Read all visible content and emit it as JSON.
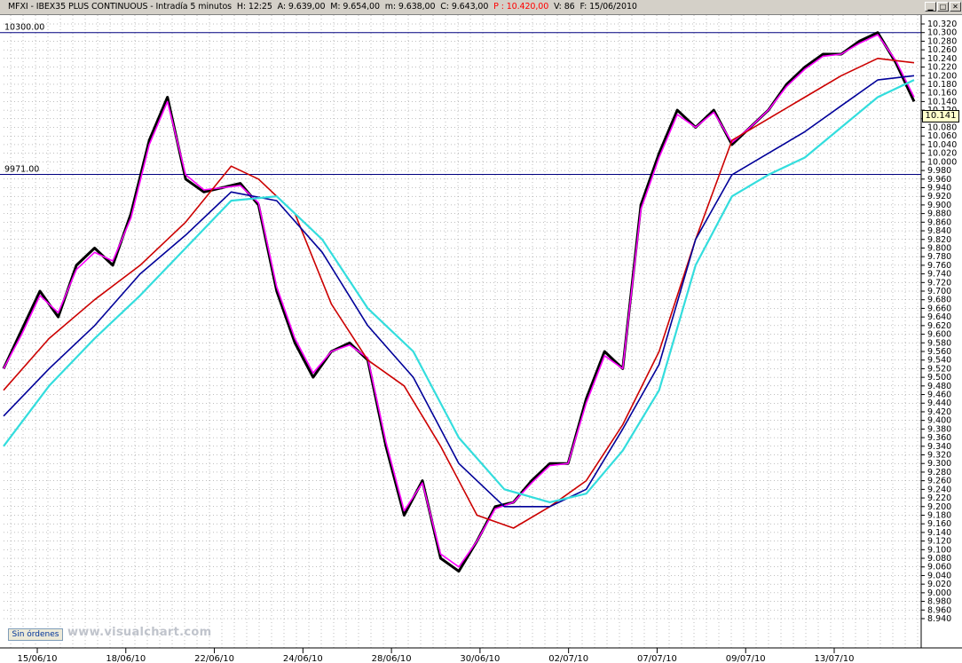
{
  "window": {
    "symbol": "MFXI - IBEX35 PLUS CONTINUOUS - Intradía 5 minutos",
    "h": "H: 12:25",
    "a": "A: 9.639,00",
    "m": "M: 9.654,00",
    "mn": "m: 9.638,00",
    "c": "C: 9.643,00",
    "p": "P : 10.420,00",
    "v": "V: 86",
    "f": "F: 15/06/2010"
  },
  "footer": {
    "orders_button": "Sin órdenes",
    "watermark": "www.visualchart.com"
  },
  "last_price_label": "10.141",
  "colors": {
    "price": "#000000",
    "ma_fast": "#ff00ff",
    "ma_mid": "#000099",
    "ma_red": "#cc0000",
    "ma_cyan": "#33dddd",
    "grid": "#7f7f7f",
    "hline": "#000080"
  },
  "chart_data": {
    "type": "line",
    "y_range": [
      8940,
      10320
    ],
    "y_tick_step": 20,
    "dates": [
      "15/06/10",
      "18/06/10",
      "22/06/10",
      "24/06/10",
      "28/06/10",
      "30/06/10",
      "02/07/10",
      "07/07/10",
      "09/07/10",
      "13/07/10"
    ],
    "hlines": [
      {
        "label": "10300.00",
        "value": 10300
      },
      {
        "label": "9971.00",
        "value": 9971
      }
    ],
    "series": [
      {
        "color_key": "price",
        "x": [
          0.0,
          0.02,
          0.04,
          0.06,
          0.08,
          0.1,
          0.12,
          0.14,
          0.16,
          0.18,
          0.2,
          0.22,
          0.24,
          0.26,
          0.28,
          0.3,
          0.32,
          0.34,
          0.36,
          0.38,
          0.4,
          0.42,
          0.44,
          0.46,
          0.48,
          0.5,
          0.52,
          0.54,
          0.56,
          0.58,
          0.6,
          0.62,
          0.64,
          0.66,
          0.68,
          0.7,
          0.72,
          0.74,
          0.76,
          0.78,
          0.8,
          0.82,
          0.84,
          0.86,
          0.88,
          0.9,
          0.92,
          0.94,
          0.96,
          0.98,
          1.0
        ],
        "values": [
          9520,
          9610,
          9700,
          9640,
          9760,
          9800,
          9760,
          9880,
          10050,
          10150,
          9960,
          9930,
          9940,
          9950,
          9900,
          9700,
          9580,
          9500,
          9560,
          9580,
          9540,
          9340,
          9180,
          9260,
          9080,
          9050,
          9120,
          9200,
          9210,
          9260,
          9300,
          9300,
          9450,
          9560,
          9520,
          9900,
          10020,
          10120,
          10080,
          10120,
          10040,
          10080,
          10120,
          10180,
          10220,
          10250,
          10250,
          10280,
          10300,
          10230,
          10140
        ]
      },
      {
        "color_key": "ma_fast",
        "x": [
          0.0,
          0.02,
          0.04,
          0.06,
          0.08,
          0.1,
          0.12,
          0.14,
          0.16,
          0.18,
          0.2,
          0.22,
          0.24,
          0.26,
          0.28,
          0.3,
          0.32,
          0.34,
          0.36,
          0.38,
          0.4,
          0.42,
          0.44,
          0.46,
          0.48,
          0.5,
          0.52,
          0.54,
          0.56,
          0.58,
          0.6,
          0.62,
          0.64,
          0.66,
          0.68,
          0.7,
          0.72,
          0.74,
          0.76,
          0.78,
          0.8,
          0.82,
          0.84,
          0.86,
          0.88,
          0.9,
          0.92,
          0.94,
          0.96,
          0.98,
          1.0
        ],
        "values": [
          9520,
          9600,
          9690,
          9650,
          9750,
          9790,
          9770,
          9870,
          10040,
          10140,
          9970,
          9935,
          9940,
          9945,
          9905,
          9710,
          9590,
          9510,
          9560,
          9575,
          9545,
          9350,
          9190,
          9255,
          9090,
          9060,
          9120,
          9195,
          9210,
          9255,
          9295,
          9300,
          9440,
          9550,
          9520,
          9890,
          10010,
          10110,
          10080,
          10115,
          10045,
          10080,
          10120,
          10175,
          10215,
          10245,
          10250,
          10275,
          10295,
          10235,
          10150
        ]
      },
      {
        "color_key": "ma_red",
        "x": [
          0.0,
          0.05,
          0.1,
          0.15,
          0.2,
          0.25,
          0.28,
          0.32,
          0.36,
          0.4,
          0.44,
          0.48,
          0.52,
          0.56,
          0.6,
          0.64,
          0.68,
          0.72,
          0.76,
          0.8,
          0.84,
          0.88,
          0.92,
          0.96,
          1.0
        ],
        "values": [
          9470,
          9590,
          9680,
          9760,
          9860,
          9990,
          9960,
          9880,
          9670,
          9540,
          9480,
          9340,
          9180,
          9150,
          9200,
          9260,
          9390,
          9560,
          9820,
          10050,
          10100,
          10150,
          10200,
          10240,
          10230
        ]
      },
      {
        "color_key": "ma_mid",
        "x": [
          0.0,
          0.05,
          0.1,
          0.15,
          0.2,
          0.25,
          0.3,
          0.35,
          0.4,
          0.45,
          0.5,
          0.55,
          0.6,
          0.64,
          0.68,
          0.72,
          0.76,
          0.8,
          0.84,
          0.88,
          0.92,
          0.96,
          1.0
        ],
        "values": [
          9410,
          9520,
          9620,
          9740,
          9830,
          9930,
          9910,
          9790,
          9620,
          9500,
          9300,
          9200,
          9200,
          9240,
          9380,
          9530,
          9820,
          9970,
          10020,
          10070,
          10130,
          10190,
          10200
        ]
      },
      {
        "color_key": "ma_cyan",
        "x": [
          0.0,
          0.05,
          0.1,
          0.15,
          0.2,
          0.25,
          0.3,
          0.35,
          0.4,
          0.45,
          0.5,
          0.55,
          0.6,
          0.64,
          0.68,
          0.72,
          0.76,
          0.8,
          0.84,
          0.88,
          0.92,
          0.96,
          1.0
        ],
        "values": [
          9340,
          9480,
          9590,
          9690,
          9800,
          9910,
          9920,
          9820,
          9660,
          9560,
          9360,
          9240,
          9210,
          9230,
          9330,
          9470,
          9760,
          9920,
          9970,
          10010,
          10080,
          10150,
          10190
        ]
      }
    ]
  }
}
